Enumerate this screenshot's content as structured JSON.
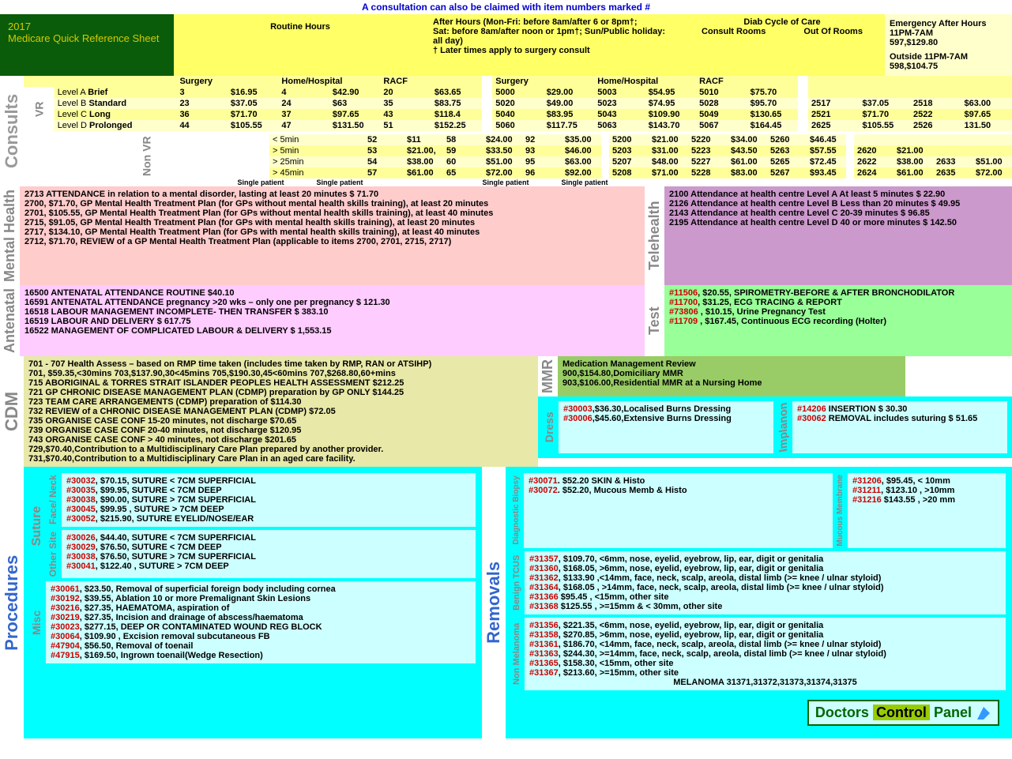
{
  "top_note": "A consultation can also be claimed with item numbers marked  #",
  "title": {
    "year": "2017",
    "name": "Medicare Quick Reference Sheet"
  },
  "headers": {
    "routine": "Routine Hours",
    "afterhours": "After Hours (Mon-Fri: before 8am/after 6 or 8pm†;\nSat: before 8am/after noon or 1pm†;  Sun/Public holiday: all day)\n† Later times apply to surgery consult",
    "diab": "Diab Cycle of Care",
    "diab_cols": [
      "Consult Rooms",
      "Out Of Rooms"
    ],
    "emerg_title": "Emergency After Hours 11PM-7AM",
    "emerg1": "597,$129.80",
    "emerg_sub": "Outside 11PM-7AM",
    "emerg2": "598,$104.75"
  },
  "cols": [
    "Surgery",
    "Home/Hospital",
    "RACF"
  ],
  "vr": {
    "label": "VR",
    "levels": [
      "Level A Brief",
      "Level B Standard",
      "Level C Long",
      "Level D Prolonged"
    ],
    "routine": [
      [
        "3",
        "$16.95",
        "4",
        "$42.90",
        "20",
        "$63.65"
      ],
      [
        "23",
        "$37.05",
        "24",
        "$63",
        "35",
        "$83.75"
      ],
      [
        "36",
        "$71.70",
        "37",
        "$97.65",
        "43",
        "$118.4"
      ],
      [
        "44",
        "$105.55",
        "47",
        "$131.50",
        "51",
        "$152.25"
      ]
    ],
    "after": [
      [
        "5000",
        "$29.00",
        "5003",
        "$54.95",
        "5010",
        "$75.70"
      ],
      [
        "5020",
        "$49.00",
        "5023",
        "$74.95",
        "5028",
        "$95.70"
      ],
      [
        "5040",
        "$83.95",
        "5043",
        "$109.90",
        "5049",
        "$130.65"
      ],
      [
        "5060",
        "$117.75",
        "5063",
        "$143.70",
        "5067",
        "$164.45"
      ]
    ],
    "diab": [
      [
        "",
        "",
        "",
        ""
      ],
      [
        "2517",
        "$37.05",
        "2518",
        "$63.00"
      ],
      [
        "2521",
        "$71.70",
        "2522",
        "$97.65"
      ],
      [
        "2625",
        "$105.55",
        "2526",
        "131.50"
      ]
    ]
  },
  "nonvr": {
    "label": "Non VR",
    "levels": [
      "< 5min",
      "> 5min",
      "> 25min",
      "> 45min"
    ],
    "routine": [
      [
        "52",
        "$11",
        "58",
        "$24.00",
        "92",
        "$35.00"
      ],
      [
        "53",
        "$21.00,",
        "59",
        "$33.50",
        "93",
        "$46.00"
      ],
      [
        "54",
        "$38.00",
        "60",
        "$51.00",
        "95",
        "$63.00"
      ],
      [
        "57",
        "$61.00",
        "65",
        "$72.00",
        "96",
        "$92.00"
      ]
    ],
    "after": [
      [
        "5200",
        "$21.00",
        "5220",
        "$34.00",
        "5260",
        "$46.45"
      ],
      [
        "5203",
        "$31.00",
        "5223",
        "$43.50",
        "5263",
        "$57.55"
      ],
      [
        "5207",
        "$48.00",
        "5227",
        "$61.00",
        "5265",
        "$72.45"
      ],
      [
        "5208",
        "$71.00",
        "5228",
        "$83.00",
        "5267",
        "$93.45"
      ]
    ],
    "diab": [
      [
        "",
        "",
        "",
        ""
      ],
      [
        "2620",
        "$21.00",
        "",
        ""
      ],
      [
        "2622",
        "$38.00",
        "2633",
        "$51.00"
      ],
      [
        "2624",
        "$61.00",
        "2635",
        "$72.00"
      ]
    ]
  },
  "sp": "Single patient",
  "mh": {
    "label": "Mental Health",
    "items": [
      "2713 ATTENDANCE in relation to a mental disorder, lasting at least 20 minutes $ 71.70",
      "2700, $71.70, GP Mental Health Treatment Plan (for GPs without mental health skills training), at least 20 minutes",
      "2701, $105.55, GP Mental Health Treatment Plan (for GPs without mental health skills training), at least 40 minutes",
      "2715, $91.05, GP Mental Health Treatment Plan (for GPs with mental health skills training), at least 20 minutes",
      "2717, $134.10, GP Mental Health Treatment Plan (for GPs with mental health skills training), at least 40 minutes",
      "2712, $71.70, REVIEW of a GP Mental Health Treatment Plan  (applicable to items 2700, 2701, 2715, 2717)"
    ]
  },
  "tele": {
    "label": "Telehealth",
    "items": [
      "2100 Attendance at health centre Level A At least 5 minutes $ 22.90",
      "2126 Attendance at health centre  Level B Less than 20 minutes $ 49.95",
      "2143 Attendance at health centre  Level C 20-39 minutes $ 96.85",
      "2195 Attendance at health centre  Level D 40 or more minutes $ 142.50"
    ]
  },
  "ante": {
    "label": "Antenatal",
    "items": [
      "16500 ANTENATAL ATTENDANCE ROUTINE $40.10",
      "16591 ANTENATAL ATTENDANCE pregnancy >20 wks – only one per pregnancy $ 121.30",
      "16518 LABOUR MANAGEMENT INCOMPLETE- THEN TRANSFER $ 383.10",
      "16519 LABOUR AND DELIVERY $ 617.75",
      "16522 MANAGEMENT OF COMPLICATED LABOUR & DELIVERY $ 1,553.15"
    ]
  },
  "test": {
    "label": "Test",
    "items": [
      "#11506, $20.55,  SPIROMETRY-BEFORE & AFTER BRONCHODILATOR",
      "#11700, $31.25, ECG TRACING & REPORT",
      "#73806 , $10.15,  Urine Pregnancy Test",
      "#11709 , $167.45, Continuous ECG recording (Holter)"
    ]
  },
  "cdm": {
    "label": "CDM",
    "items": [
      "701 - 707 Health Assess – based on RMP time taken (includes time taken by RMP, RAN or ATSIHP)",
      "701, $59.35,<30mins   703,$137.90,30<45mins   705,$190.30,45<60mins   707,$268.80,60+mins",
      "715 ABORIGINAL & TORRES STRAIT ISLANDER PEOPLES HEALTH ASSESSMENT $212.25",
      "721 GP CHRONIC DISEASE MANAGEMENT PLAN (CDMP) preparation by GP ONLY  $144.25",
      "723 TEAM CARE ARRANGEMENTS (CDMP) preparation of  $114.30",
      "732 REVIEW of a CHRONIC DISEASE MANAGEMENT PLAN (CDMP) $72.05",
      "735 ORGANISE CASE CONF 15-20 minutes, not discharge $70.65",
      "739 ORGANISE CASE CONF 20-40 minutes, not discharge  $120.95",
      "743 ORGANISE CASE CONF > 40 minutes, not discharge   $201.65",
      "729,$70.40,Contribution to a Multidisciplinary Care Plan prepared by another provider.",
      "731,$70.40,Contribution to a Multidisciplinary Care Plan in an aged care facility."
    ]
  },
  "mmr": {
    "label": "MMR",
    "title": "Medication Management Review",
    "items": [
      "900,$154.80,Domiciliary MMR",
      "903,$106.00,Residential MMR at a Nursing Home"
    ]
  },
  "dress": {
    "label": "Dress",
    "items": [
      "#30003,$36.30,Localised Burns Dressing",
      "#30006,$45.60,Extensive Burns Dressing"
    ]
  },
  "implanon": {
    "label": "Implanon",
    "items": [
      "#14206 INSERTION $ 30.30",
      "#30062 REMOVAL  includes suturing $ 51.65"
    ]
  },
  "proc": {
    "label": "Procedures",
    "suture_label": "Suture",
    "face_label": "Face/ Neck",
    "other_label": "Other Site",
    "misc_label": "Misc",
    "face": [
      "#30032, $70.15, SUTURE < 7CM SUPERFICIAL",
      "#30035, $99.95,  SUTURE < 7CM DEEP",
      "#30038, $90.00, SUTURE > 7CM SUPERFICIAL",
      "#30045, $99.95 , SUTURE > 7CM DEEP",
      "#30052, $215.90, SUTURE EYELID/NOSE/EAR"
    ],
    "other": [
      "#30026, $44.40, SUTURE < 7CM SUPERFICIAL",
      "#30029, $76.50,  SUTURE  < 7CM DEEP",
      "#30038, $76.50, SUTURE > 7CM SUPERFICIAL",
      "#30041, $122.40 , SUTURE > 7CM DEEP"
    ],
    "misc": [
      "#30061, $23.50, Removal of superficial foreign body including cornea",
      "#30192, $39.55, Ablation 10 or more Premalignant Skin Lesions",
      "#30216, $27.35, HAEMATOMA, aspiration of",
      "#30219, $27.35, Incision and drainage of abscess/haematoma",
      "#30023, $277.15, DEEP OR CONTAMINATED WOUND REG BLOCK",
      "#30064, $109.90 , Excision removal subcutaneous FB",
      "#47904, $56.50, Removal of toenail",
      "#47915, $169.50, Ingrown toenail(Wedge Resection)"
    ]
  },
  "rem": {
    "label": "Removals",
    "diag_label": "Diagnostic Biopsy",
    "diag": [
      "#30071. $52.20 SKIN & Histo",
      "#30072. $52.20, Mucous Memb & Histo"
    ],
    "mucous_label": "Mucous Membrane",
    "mucous": [
      "#31206, $95.45, < 10mm",
      "#31211, $123.10 ,  >10mm",
      "#31216 $143.55 ,  >20 mm"
    ],
    "benign_label": "Benign TCUS",
    "benign": [
      "#31357, $109.70, <6mm, nose, eyelid, eyebrow, lip, ear, digit or genitalia",
      "#31360, $168.05,  >6mm, nose, eyelid, eyebrow, lip, ear, digit or genitalia",
      "#31362, $133.90 ,<14mm,  face, neck, scalp, areola, distal limb (>= knee / ulnar styloid)",
      "#31364, $168.05 , >14mm,  face, neck, scalp, areola, distal limb (>= knee / ulnar styloid)",
      "#31366 $95.45 , <15mm,  other site",
      "#31368 $125.55 , >=15mm & < 30mm,  other site"
    ],
    "nonmel_label": "Non Melanoma",
    "nonmel": [
      "#31356, $221.35, <6mm, nose, eyelid, eyebrow, lip, ear, digit or genitalia",
      "#31358, $270.85, >6mm, nose, eyelid, eyebrow, lip, ear, digit or genitalia",
      "#31361, $186.70, <14mm,  face, neck, scalp, areola, distal limb (>= knee / ulnar styloid)",
      "#31363, $244.30, >=14mm,  face, neck, scalp, areola, distal limb (>= knee / ulnar styloid)",
      "#31365, $158.30, <15mm,  other site",
      "#31367, $213.60, >=15mm,  other site"
    ],
    "melanoma": "MELANOMA 31371,31372,31373,31374,31375"
  },
  "dcp": {
    "d": "Doctors",
    "c": "Control",
    "p": "Panel"
  },
  "consults_label": "Consults"
}
